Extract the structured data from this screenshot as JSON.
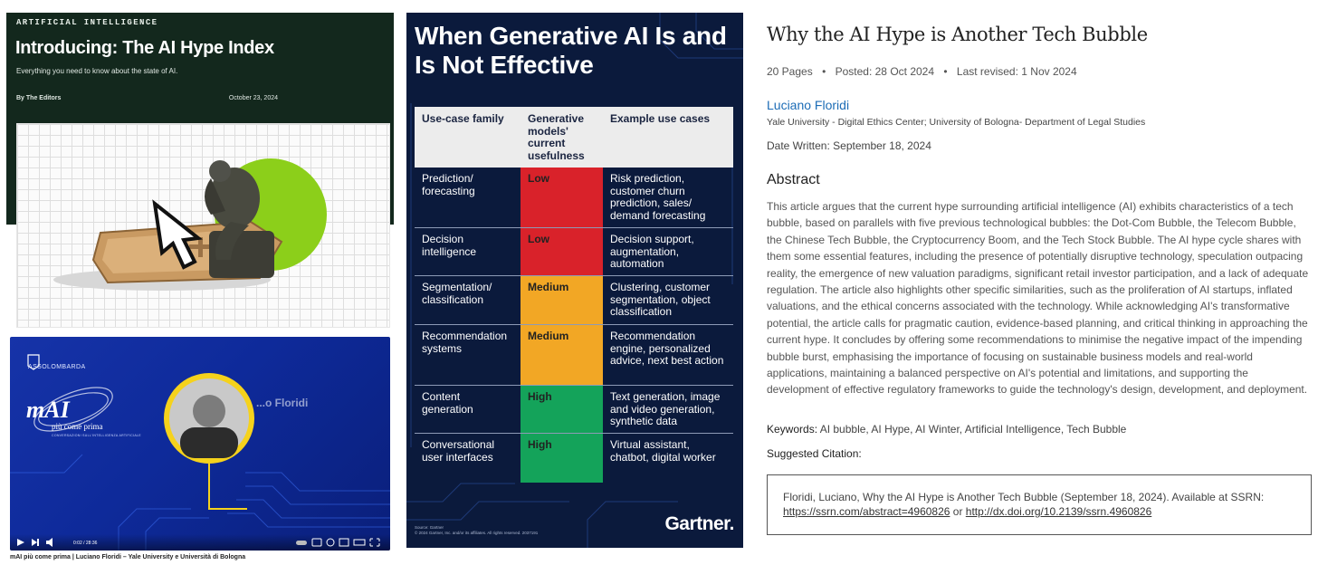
{
  "hype_index": {
    "kicker": "ARTIFICIAL INTELLIGENCE",
    "title": "Introducing: The AI Hype Index",
    "subtitle": "Everything you need to know about the state of AI.",
    "byline": "By The Editors",
    "date": "October 23, 2024"
  },
  "video": {
    "brand": "ASSOLOMBARDA",
    "logo_main": "mAI",
    "logo_tagline": "più come prima",
    "logo_small": "CONVERSAZIONI SULL'INTELLIGENZA ARTIFICIALE",
    "speaker_name_partial": "...o Floridi",
    "time": "0:02 / 28:36",
    "caption": "mAI più come prima | Luciano Floridi – Yale University e Università di Bologna"
  },
  "gartner": {
    "title": "When Generative AI Is and Is Not Effective",
    "headers": {
      "col1": "Use-case family",
      "col2": "Generative models' current usefulness",
      "col3": "Example use cases"
    },
    "rows": [
      {
        "family": "Prediction/ forecasting",
        "usefulness": "Low",
        "level": "low",
        "examples": "Risk prediction, customer churn prediction, sales/ demand forecasting"
      },
      {
        "family": "Decision intelligence",
        "usefulness": "Low",
        "level": "low",
        "examples": "Decision support, augmentation, automation"
      },
      {
        "family": "Segmentation/ classification",
        "usefulness": "Medium",
        "level": "medium",
        "examples": "Clustering, customer segmentation, object classification"
      },
      {
        "family": "Recommendation systems",
        "usefulness": "Medium",
        "level": "medium",
        "examples": "Recommendation engine, personalized advice, next best action"
      },
      {
        "family": "Content generation",
        "usefulness": "High",
        "level": "high",
        "examples": "Text generation, image and video generation, synthetic data"
      },
      {
        "family": "Conversational user interfaces",
        "usefulness": "High",
        "level": "high",
        "examples": "Virtual assistant, chatbot, digital worker"
      }
    ],
    "colors": {
      "low": "#d9222a",
      "medium": "#f2a725",
      "high": "#14a35a"
    },
    "source_line1": "Source: Gartner",
    "source_line2": "© 2024 Gartner, Inc. and/or its affiliates. All rights reserved. 2037191",
    "logo": "Gartner."
  },
  "ssrn": {
    "title": "Why the AI Hype is Another Tech Bubble",
    "pages": "20 Pages",
    "posted": "Posted: 28 Oct 2024",
    "revised": "Last revised: 1 Nov 2024",
    "author": "Luciano Floridi",
    "affiliation": "Yale University - Digital Ethics Center; University of Bologna- Department of Legal Studies",
    "date_written": "Date Written: September 18, 2024",
    "abstract_heading": "Abstract",
    "abstract": "This article argues that the current hype surrounding artificial intelligence (AI) exhibits characteristics of a tech bubble, based on parallels with five previous technological bubbles: the Dot-Com Bubble, the Telecom Bubble, the Chinese Tech Bubble, the Cryptocurrency Boom, and the Tech Stock Bubble. The AI hype cycle shares with them some essential features, including the presence of potentially disruptive technology, speculation outpacing reality, the emergence of new valuation paradigms, significant retail investor participation, and a lack of adequate regulation. The article also highlights other specific similarities, such as the proliferation of AI startups, inflated valuations, and the ethical concerns associated with the technology. While acknowledging AI's transformative potential, the article calls for pragmatic caution, evidence-based planning, and critical thinking in approaching the current hype. It concludes by offering some recommendations to minimise the negative impact of the impending bubble burst, emphasising the importance of focusing on sustainable business models and real-world applications, maintaining a balanced perspective on AI's potential and limitations, and supporting the development of effective regulatory frameworks to guide the technology's design, development, and deployment.",
    "keywords_label": "Keywords:",
    "keywords": "AI bubble, AI Hype, AI Winter, Artificial Intelligence, Tech Bubble",
    "citation_label": "Suggested Citation:",
    "citation_text": "Floridi, Luciano, Why the AI Hype is Another Tech Bubble (September 18, 2024). Available at SSRN:",
    "citation_link1": "https://ssrn.com/abstract=4960826",
    "citation_or": "or",
    "citation_link2": "http://dx.doi.org/10.2139/ssrn.4960826"
  }
}
